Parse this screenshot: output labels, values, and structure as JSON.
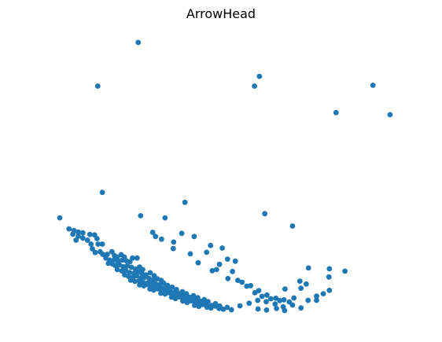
{
  "chart_data": {
    "type": "scatter",
    "title": "ArrowHead",
    "xlabel": "",
    "ylabel": "",
    "grid": false,
    "axes_visible": false,
    "xlim": [
      0,
      100
    ],
    "ylim": [
      0,
      100
    ],
    "series": [
      {
        "color": "#1f77b4",
        "points": [
          [
            22.1,
            98.5
          ],
          [
            10.7,
            81.9
          ],
          [
            54.9,
            81.9
          ],
          [
            56.3,
            85.6
          ],
          [
            88.3,
            82.2
          ],
          [
            77.9,
            71.8
          ],
          [
            93.1,
            71.0
          ],
          [
            12.0,
            41.4
          ],
          [
            35.3,
            37.6
          ],
          [
            57.8,
            33.3
          ],
          [
            65.6,
            28.6
          ],
          [
            0.0,
            31.7
          ],
          [
            22.8,
            32.5
          ],
          [
            29.7,
            31.7
          ],
          [
            2.6,
            27.5
          ],
          [
            4.0,
            26.9
          ],
          [
            5.2,
            26.3
          ],
          [
            6.5,
            26.0
          ],
          [
            3.7,
            25.5
          ],
          [
            5.2,
            24.7
          ],
          [
            6.5,
            24.0
          ],
          [
            4.6,
            23.2
          ],
          [
            7.8,
            23.2
          ],
          [
            8.5,
            25.4
          ],
          [
            9.8,
            25.2
          ],
          [
            10.5,
            23.8
          ],
          [
            8.8,
            21.7
          ],
          [
            10.8,
            21.7
          ],
          [
            12.0,
            21.7
          ],
          [
            9.2,
            19.9
          ],
          [
            10.0,
            18.5
          ],
          [
            11.4,
            18.8
          ],
          [
            12.1,
            17.8
          ],
          [
            13.4,
            17.8
          ],
          [
            14.7,
            18.8
          ],
          [
            15.4,
            17.4
          ],
          [
            16.2,
            16.7
          ],
          [
            17.3,
            17.7
          ],
          [
            18.2,
            16.8
          ],
          [
            13.0,
            16.4
          ],
          [
            14.1,
            15.6
          ],
          [
            15.3,
            15.7
          ],
          [
            16.4,
            15.2
          ],
          [
            17.6,
            15.6
          ],
          [
            18.7,
            15.4
          ],
          [
            19.8,
            15.0
          ],
          [
            20.5,
            16.4
          ],
          [
            21.8,
            16.4
          ],
          [
            13.7,
            14.4
          ],
          [
            14.8,
            14.2
          ],
          [
            15.6,
            13.6
          ],
          [
            16.8,
            13.8
          ],
          [
            17.9,
            13.1
          ],
          [
            19.0,
            13.4
          ],
          [
            20.2,
            12.9
          ],
          [
            21.3,
            12.2
          ],
          [
            22.5,
            13.0
          ],
          [
            23.4,
            12.0
          ],
          [
            16.2,
            12.0
          ],
          [
            17.5,
            11.5
          ],
          [
            18.6,
            11.7
          ],
          [
            19.7,
            10.9
          ],
          [
            20.9,
            10.6
          ],
          [
            22.1,
            11.2
          ],
          [
            23.2,
            10.4
          ],
          [
            24.3,
            10.0
          ],
          [
            25.5,
            10.8
          ],
          [
            26.6,
            9.7
          ],
          [
            18.3,
            10.0
          ],
          [
            19.4,
            9.4
          ],
          [
            20.6,
            9.0
          ],
          [
            21.7,
            9.6
          ],
          [
            22.9,
            8.7
          ],
          [
            24.0,
            9.1
          ],
          [
            25.2,
            8.6
          ],
          [
            26.3,
            8.0
          ],
          [
            27.5,
            8.5
          ],
          [
            28.6,
            7.9
          ],
          [
            20.0,
            8.0
          ],
          [
            21.2,
            7.5
          ],
          [
            22.4,
            7.8
          ],
          [
            23.5,
            7.2
          ],
          [
            24.7,
            6.8
          ],
          [
            25.8,
            7.3
          ],
          [
            27.0,
            6.6
          ],
          [
            28.1,
            6.2
          ],
          [
            29.3,
            6.9
          ],
          [
            30.4,
            6.0
          ],
          [
            22.5,
            6.2
          ],
          [
            23.7,
            5.8
          ],
          [
            24.8,
            6.3
          ],
          [
            26.0,
            5.5
          ],
          [
            27.1,
            5.1
          ],
          [
            28.3,
            5.7
          ],
          [
            29.4,
            4.9
          ],
          [
            30.6,
            4.5
          ],
          [
            31.7,
            5.3
          ],
          [
            32.9,
            4.4
          ],
          [
            25.4,
            4.6
          ],
          [
            26.5,
            4.2
          ],
          [
            27.7,
            4.7
          ],
          [
            28.8,
            3.9
          ],
          [
            30.0,
            3.5
          ],
          [
            31.1,
            4.1
          ],
          [
            32.3,
            3.3
          ],
          [
            33.4,
            3.0
          ],
          [
            34.6,
            3.6
          ],
          [
            35.7,
            2.8
          ],
          [
            28.5,
            3.0
          ],
          [
            29.7,
            2.7
          ],
          [
            30.8,
            3.2
          ],
          [
            32.0,
            2.4
          ],
          [
            33.1,
            2.0
          ],
          [
            34.3,
            2.6
          ],
          [
            35.4,
            1.9
          ],
          [
            36.6,
            1.5
          ],
          [
            37.7,
            2.1
          ],
          [
            38.9,
            1.3
          ],
          [
            31.5,
            1.5
          ],
          [
            32.6,
            1.0
          ],
          [
            33.8,
            1.6
          ],
          [
            34.9,
            0.8
          ],
          [
            36.1,
            0.5
          ],
          [
            37.2,
            1.1
          ],
          [
            38.4,
            0.4
          ],
          [
            39.5,
            0.0
          ],
          [
            40.7,
            0.6
          ],
          [
            41.8,
            -0.2
          ],
          [
            34.7,
            0.0
          ],
          [
            35.9,
            -0.5
          ],
          [
            37.0,
            0.1
          ],
          [
            38.2,
            -0.8
          ],
          [
            39.3,
            -1.1
          ],
          [
            40.5,
            -0.5
          ],
          [
            41.6,
            -1.3
          ],
          [
            42.8,
            -1.7
          ],
          [
            43.9,
            -1.0
          ],
          [
            45.1,
            -1.9
          ],
          [
            38.0,
            -1.6
          ],
          [
            39.2,
            -2.0
          ],
          [
            40.3,
            -1.3
          ],
          [
            41.5,
            -2.3
          ],
          [
            42.6,
            -2.6
          ],
          [
            43.8,
            -1.9
          ],
          [
            44.9,
            -2.8
          ],
          [
            46.1,
            -3.1
          ],
          [
            47.2,
            -2.4
          ],
          [
            48.4,
            -3.3
          ],
          [
            26.2,
            26.2
          ],
          [
            28.7,
            23.6
          ],
          [
            32.1,
            22.5
          ],
          [
            34.4,
            25.8
          ],
          [
            37.9,
            24.6
          ],
          [
            27.0,
            24.6
          ],
          [
            32.0,
            20.0
          ],
          [
            42.5,
            21.2
          ],
          [
            45.8,
            20.2
          ],
          [
            36.8,
            18.0
          ],
          [
            41.4,
            18.6
          ],
          [
            44.2,
            12.0
          ],
          [
            48.7,
            11.3
          ],
          [
            51.4,
            7.2
          ],
          [
            53.8,
            5.9
          ],
          [
            56.1,
            4.0
          ],
          [
            58.4,
            2.3
          ],
          [
            60.9,
            1.1
          ],
          [
            63.2,
            0.5
          ],
          [
            66.0,
            1.2
          ],
          [
            63.5,
            4.6
          ],
          [
            68.0,
            4.9
          ],
          [
            67.7,
            7.6
          ],
          [
            69.5,
            6.5
          ],
          [
            76.0,
            12.3
          ],
          [
            75.9,
            9.2
          ],
          [
            76.0,
            4.1
          ],
          [
            80.4,
            11.4
          ],
          [
            70.1,
            12.6
          ],
          [
            45.0,
            14.0
          ],
          [
            47.3,
            16.0
          ],
          [
            49.5,
            15.2
          ],
          [
            39.0,
            14.6
          ],
          [
            43.0,
            11.6
          ],
          [
            47.4,
            8.6
          ],
          [
            50.2,
            7.9
          ],
          [
            52.7,
            5.7
          ],
          [
            55.0,
            3.2
          ],
          [
            57.0,
            1.8
          ],
          [
            59.5,
            0.9
          ],
          [
            62.0,
            0.2
          ],
          [
            64.7,
            -0.3
          ],
          [
            50.8,
            -1.8
          ],
          [
            53.4,
            -0.8
          ],
          [
            55.8,
            0.3
          ],
          [
            58.2,
            -0.2
          ],
          [
            60.7,
            -1.1
          ],
          [
            63.0,
            -2.2
          ],
          [
            65.6,
            -1.5
          ],
          [
            68.0,
            -2.6
          ],
          [
            55.9,
            -3.0
          ],
          [
            58.3,
            -3.4
          ],
          [
            61.1,
            -2.8
          ],
          [
            63.4,
            -3.6
          ],
          [
            70.0,
            0.3
          ],
          [
            72.4,
            1.9
          ],
          [
            74.3,
            2.8
          ],
          [
            72.4,
            0.3
          ]
        ]
      }
    ]
  }
}
